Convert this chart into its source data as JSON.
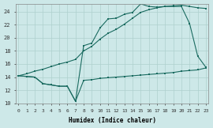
{
  "xlabel": "Humidex (Indice chaleur)",
  "bg_color": "#cde8e8",
  "line_color": "#1a6b60",
  "grid_color": "#aed0ce",
  "xlim_min": -0.3,
  "xlim_max": 23.3,
  "ylim_min": 10,
  "ylim_max": 25.2,
  "xticks": [
    0,
    1,
    2,
    3,
    4,
    5,
    6,
    7,
    8,
    9,
    10,
    11,
    12,
    13,
    14,
    15,
    16,
    17,
    18,
    19,
    20,
    21,
    22,
    23
  ],
  "yticks": [
    10,
    12,
    14,
    16,
    18,
    20,
    22,
    24
  ],
  "line1_x": [
    0,
    1,
    2,
    3,
    4,
    5,
    6,
    7,
    8,
    9,
    10,
    11,
    12,
    13,
    14,
    15,
    16,
    17,
    18,
    19,
    20,
    21,
    22,
    23
  ],
  "line1_y": [
    14.2,
    14.1,
    14.0,
    13.0,
    12.8,
    12.6,
    12.6,
    10.3,
    13.5,
    13.6,
    13.8,
    13.9,
    14.0,
    14.1,
    14.2,
    14.3,
    14.4,
    14.5,
    14.6,
    14.7,
    14.9,
    15.0,
    15.1,
    15.4
  ],
  "line2_x": [
    0,
    1,
    2,
    3,
    4,
    5,
    6,
    7,
    8,
    9,
    10,
    11,
    12,
    13,
    14,
    15,
    16,
    17,
    18,
    19,
    20,
    21,
    22,
    23
  ],
  "line2_y": [
    14.2,
    14.1,
    14.0,
    13.0,
    12.8,
    12.6,
    12.6,
    10.3,
    18.8,
    19.2,
    21.5,
    22.9,
    23.0,
    23.6,
    23.9,
    25.2,
    24.8,
    24.7,
    24.8,
    24.8,
    24.8,
    22.2,
    17.2,
    15.5
  ],
  "line3_x": [
    0,
    1,
    2,
    3,
    4,
    5,
    6,
    7,
    8,
    9,
    10,
    11,
    12,
    13,
    14,
    15,
    16,
    17,
    18,
    19,
    20,
    21,
    22,
    23
  ],
  "line3_y": [
    14.2,
    14.5,
    14.9,
    15.2,
    15.6,
    16.0,
    16.3,
    16.7,
    18.0,
    18.7,
    19.8,
    20.7,
    21.3,
    22.1,
    23.0,
    23.9,
    24.3,
    24.6,
    24.8,
    24.9,
    25.0,
    24.8,
    24.6,
    24.5
  ]
}
